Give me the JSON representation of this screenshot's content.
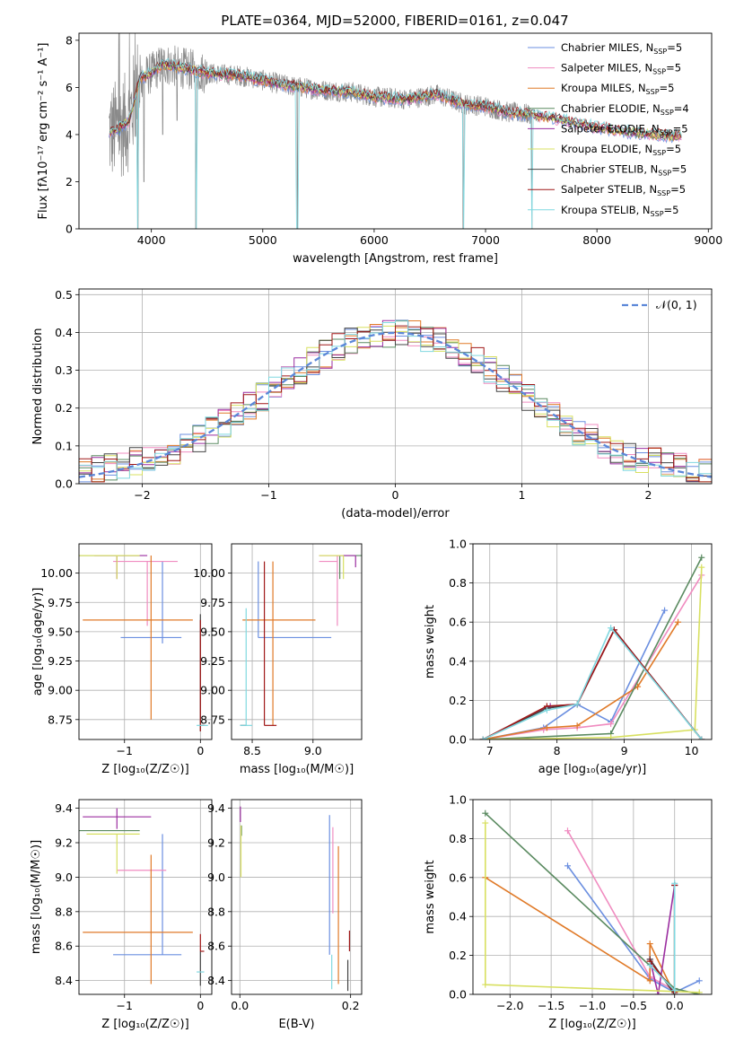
{
  "figure": {
    "title": "PLATE=0364, MJD=52000, FIBERID=0161, z=0.047"
  },
  "series_colors": [
    "#6b8fe0",
    "#f08cc0",
    "#e07a28",
    "#5a8a60",
    "#9b2ea0",
    "#d8e060",
    "#444444",
    "#a01818",
    "#80d8e0"
  ],
  "chart_data": [
    {
      "id": "spectrum",
      "type": "line",
      "xlabel": "wavelength [Angstrom, rest frame]",
      "ylabel": "Flux [$f_\\lambda 10^{-17}$ erg cm$^{-2}$ s$^{-1}$ A$^{-1}$]",
      "ylabel_display": "Flux [fλ10⁻¹⁷ erg cm⁻² s⁻¹ A⁻¹]",
      "xlim": [
        3350,
        9030
      ],
      "ylim": [
        0,
        8.3
      ],
      "xticks": [
        4000,
        5000,
        6000,
        7000,
        8000,
        9000
      ],
      "yticks": [
        0,
        2,
        4,
        6,
        8
      ],
      "grid": false,
      "legend_position": "top-right",
      "legend": [
        {
          "label": "Chabrier MILES, N",
          "sub": "SSP",
          "suffix": "=5"
        },
        {
          "label": "Salpeter MILES, N",
          "sub": "SSP",
          "suffix": "=5"
        },
        {
          "label": "Kroupa MILES, N",
          "sub": "SSP",
          "suffix": "=5"
        },
        {
          "label": "Chabrier ELODIE, N",
          "sub": "SSP",
          "suffix": "=4"
        },
        {
          "label": "Salpeter ELODIE, N",
          "sub": "SSP",
          "suffix": "=5"
        },
        {
          "label": "Kroupa ELODIE, N",
          "sub": "SSP",
          "suffix": "=5"
        },
        {
          "label": "Chabrier STELIB, N",
          "sub": "SSP",
          "suffix": "=5"
        },
        {
          "label": "Salpeter STELIB, N",
          "sub": "SSP",
          "suffix": "=5"
        },
        {
          "label": "Kroupa STELIB, N",
          "sub": "SSP",
          "suffix": "=5"
        }
      ],
      "continuum": [
        [
          3620,
          4.1
        ],
        [
          3700,
          4.2
        ],
        [
          3800,
          4.6
        ],
        [
          3900,
          6.4
        ],
        [
          4000,
          6.6
        ],
        [
          4100,
          7.0
        ],
        [
          4300,
          6.8
        ],
        [
          4500,
          6.6
        ],
        [
          4800,
          6.5
        ],
        [
          5000,
          6.3
        ],
        [
          5200,
          6.1
        ],
        [
          5500,
          5.9
        ],
        [
          5800,
          5.8
        ],
        [
          6000,
          5.6
        ],
        [
          6300,
          5.5
        ],
        [
          6563,
          5.7
        ],
        [
          6800,
          5.3
        ],
        [
          7000,
          5.2
        ],
        [
          7200,
          4.95
        ],
        [
          7400,
          4.85
        ]
      ],
      "model_end": [
        [
          7400,
          4.85
        ],
        [
          7600,
          4.7
        ],
        [
          7800,
          4.5
        ],
        [
          8000,
          4.3
        ],
        [
          8300,
          4.1
        ],
        [
          8500,
          4.0
        ],
        [
          8700,
          3.95
        ],
        [
          8760,
          3.95
        ]
      ],
      "dips": [
        [
          3933,
          2.0
        ],
        [
          4101,
          4.0
        ],
        [
          4230,
          4.6
        ],
        [
          4400,
          0.0
        ],
        [
          5310,
          0.0
        ],
        [
          6800,
          0.0
        ],
        [
          7420,
          0.0
        ],
        [
          3880,
          0.0
        ]
      ]
    },
    {
      "id": "residuals",
      "type": "histogram",
      "xlabel": "(data-model)/error",
      "ylabel": "Normed distribution",
      "xlim": [
        -2.5,
        2.5
      ],
      "ylim": [
        0,
        0.515
      ],
      "xticks": [
        -2,
        -1,
        0,
        1,
        2
      ],
      "yticks": [
        0.0,
        0.1,
        0.2,
        0.3,
        0.4,
        0.5
      ],
      "grid": true,
      "legend_position": "top-right",
      "legend": [
        {
          "label": "𝒩(0, 1)"
        }
      ],
      "bin_width": 0.1
    },
    {
      "id": "z_vs_age",
      "type": "errorbar",
      "xlabel": "Z [log₁₀(Z/Z☉)]",
      "ylabel": "age  [log₁₀(age/yr)]",
      "xlim": [
        -1.6,
        0.15
      ],
      "ylim": [
        8.58,
        10.25
      ],
      "xticks": [
        -1,
        0
      ],
      "yticks": [
        8.75,
        9.0,
        9.25,
        9.5,
        9.75,
        10.0
      ],
      "grid": true,
      "points": [
        {
          "x": -0.5,
          "xerr": [
            0.55,
            0.25
          ],
          "y": 9.45,
          "yerr": [
            0.05,
            0.65
          ]
        },
        {
          "x": -0.7,
          "xerr": [
            0.45,
            0.4
          ],
          "y": 10.1,
          "yerr": [
            0.55,
            0.0
          ]
        },
        {
          "x": -0.65,
          "xerr": [
            0.9,
            0.55
          ],
          "y": 9.6,
          "yerr": [
            0.85,
            0.55
          ]
        },
        {
          "x": -1.1,
          "xerr": [
            0.5,
            0.3
          ],
          "y": 10.15,
          "yerr": [
            0.0,
            0.0
          ]
        },
        {
          "x": -1.1,
          "xerr": [
            0.3,
            0.4
          ],
          "y": 10.15,
          "yerr": [
            0.2,
            0.0
          ]
        },
        {
          "x": -1.1,
          "xerr": [
            0.5,
            0.3
          ],
          "y": 10.15,
          "yerr": [
            0.2,
            0.0
          ]
        },
        {
          "x": 0.0,
          "xerr": [
            0.0,
            0.0
          ],
          "y": 8.7,
          "yerr": [
            0.05,
            0.95
          ]
        },
        {
          "x": 0.0,
          "xerr": [
            0.0,
            0.05
          ],
          "y": 8.7,
          "yerr": [
            0.05,
            0.9
          ]
        },
        {
          "x": 0.0,
          "xerr": [
            0.05,
            0.1
          ],
          "y": 8.7,
          "yerr": [
            0.0,
            0.0
          ]
        }
      ]
    },
    {
      "id": "mass_vs_age",
      "type": "errorbar",
      "xlabel": "mass [log₁₀(M/M☉)]",
      "ylabel": "",
      "xlim": [
        8.33,
        9.4
      ],
      "ylim": [
        8.58,
        10.25
      ],
      "xticks": [
        8.5,
        9.0
      ],
      "yticks": [
        8.75,
        9.0,
        9.25,
        9.5,
        9.75,
        10.0
      ],
      "grid": true,
      "points": [
        {
          "x": 8.55,
          "xerr": [
            0.0,
            0.6
          ],
          "y": 9.45,
          "yerr": [
            0.0,
            0.65
          ]
        },
        {
          "x": 9.2,
          "xerr": [
            0.15,
            0.0
          ],
          "y": 10.1,
          "yerr": [
            0.55,
            0.05
          ]
        },
        {
          "x": 8.67,
          "xerr": [
            0.25,
            0.35
          ],
          "y": 9.6,
          "yerr": [
            0.9,
            0.5
          ]
        },
        {
          "x": 9.22,
          "xerr": [
            0.0,
            0.2
          ],
          "y": 10.15,
          "yerr": [
            0.2,
            0.0
          ]
        },
        {
          "x": 9.35,
          "xerr": [
            0.3,
            0.0
          ],
          "y": 10.15,
          "yerr": [
            0.1,
            0.0
          ]
        },
        {
          "x": 9.25,
          "xerr": [
            0.2,
            0.0
          ],
          "y": 10.15,
          "yerr": [
            0.2,
            0.0
          ]
        },
        {
          "x": 8.45,
          "xerr": [
            0.05,
            0.0
          ],
          "y": 8.7,
          "yerr": [
            0.0,
            0.0
          ]
        },
        {
          "x": 8.6,
          "xerr": [
            0.0,
            0.1
          ],
          "y": 8.7,
          "yerr": [
            0.0,
            1.4
          ]
        },
        {
          "x": 8.45,
          "xerr": [
            0.05,
            0.05
          ],
          "y": 8.7,
          "yerr": [
            0.0,
            1.0
          ]
        }
      ]
    },
    {
      "id": "age_vs_weight",
      "type": "line",
      "xlabel": "age  [log₁₀(age/yr)]",
      "ylabel": "mass weight",
      "xlim": [
        6.75,
        10.3
      ],
      "ylim": [
        0,
        1.0
      ],
      "xticks": [
        7,
        8,
        9,
        10
      ],
      "yticks": [
        0.0,
        0.2,
        0.4,
        0.6,
        0.8,
        1.0
      ],
      "grid": true,
      "series": [
        {
          "x": [
            6.9,
            7.8,
            8.3,
            8.8,
            9.6
          ],
          "y": [
            0.0,
            0.06,
            0.18,
            0.09,
            0.66
          ]
        },
        {
          "x": [
            6.9,
            7.8,
            8.3,
            8.8,
            10.15
          ],
          "y": [
            0.0,
            0.05,
            0.06,
            0.08,
            0.84
          ]
        },
        {
          "x": [
            6.9,
            7.85,
            8.3,
            9.2,
            9.8
          ],
          "y": [
            0.0,
            0.06,
            0.07,
            0.27,
            0.6
          ]
        },
        {
          "x": [
            6.9,
            8.8,
            10.15
          ],
          "y": [
            0.0,
            0.03,
            0.93
          ]
        },
        {
          "x": [
            6.9,
            7.9,
            8.3,
            8.85,
            10.15
          ],
          "y": [
            0.0,
            0.17,
            0.18,
            0.56,
            0.0
          ]
        },
        {
          "x": [
            6.9,
            8.8,
            10.05,
            10.15
          ],
          "y": [
            0.0,
            0.01,
            0.05,
            0.88
          ]
        },
        {
          "x": [
            6.9,
            7.85,
            8.3,
            8.85,
            10.15
          ],
          "y": [
            0.0,
            0.16,
            0.18,
            0.56,
            0.0
          ]
        },
        {
          "x": [
            6.9,
            7.85,
            8.3,
            8.85,
            10.15
          ],
          "y": [
            0.0,
            0.17,
            0.18,
            0.56,
            0.0
          ]
        },
        {
          "x": [
            6.9,
            7.85,
            8.3,
            8.8,
            10.15
          ],
          "y": [
            0.0,
            0.15,
            0.18,
            0.57,
            0.0
          ]
        }
      ]
    },
    {
      "id": "z_vs_mass",
      "type": "errorbar",
      "xlabel": "Z [log₁₀(Z/Z☉)]",
      "ylabel": "mass [log₁₀(M/M☉)]",
      "xlim": [
        -1.6,
        0.15
      ],
      "ylim": [
        8.32,
        9.45
      ],
      "xticks": [
        -1,
        0
      ],
      "yticks": [
        8.4,
        8.6,
        8.8,
        9.0,
        9.2,
        9.4
      ],
      "grid": true,
      "points": [
        {
          "x": -0.5,
          "xerr": [
            0.65,
            0.25
          ],
          "y": 8.55,
          "yerr": [
            0.0,
            0.7
          ]
        },
        {
          "x": -0.65,
          "xerr": [
            0.45,
            0.2
          ],
          "y": 9.04,
          "yerr": [
            0.0,
            0.0
          ]
        },
        {
          "x": -0.65,
          "xerr": [
            0.9,
            0.55
          ],
          "y": 8.68,
          "yerr": [
            0.3,
            0.45
          ]
        },
        {
          "x": -1.1,
          "xerr": [
            0.5,
            0.3
          ],
          "y": 9.27,
          "yerr": [
            0.0,
            0.0
          ]
        },
        {
          "x": -1.1,
          "xerr": [
            0.45,
            0.45
          ],
          "y": 9.35,
          "yerr": [
            0.07,
            0.05
          ]
        },
        {
          "x": -1.1,
          "xerr": [
            0.4,
            0.3
          ],
          "y": 9.25,
          "yerr": [
            0.23,
            0.0
          ]
        },
        {
          "x": 0.0,
          "xerr": [
            0.0,
            0.0
          ],
          "y": 8.42,
          "yerr": [
            0.05,
            0.15
          ]
        },
        {
          "x": 0.0,
          "xerr": [
            0.0,
            0.05
          ],
          "y": 8.57,
          "yerr": [
            0.0,
            0.1
          ]
        },
        {
          "x": 0.0,
          "xerr": [
            0.05,
            0.05
          ],
          "y": 8.45,
          "yerr": [
            0.0,
            0.0
          ]
        }
      ]
    },
    {
      "id": "ebv_vs_mass",
      "type": "errorbar",
      "xlabel": "E(B-V)",
      "ylabel": "",
      "xlim": [
        -0.015,
        0.22
      ],
      "ylim": [
        8.32,
        9.45
      ],
      "xticks": [
        0.0,
        0.2
      ],
      "yticks": [
        8.4,
        8.6,
        8.8,
        9.0,
        9.2,
        9.4
      ],
      "grid": true,
      "points": [
        {
          "x": 0.162,
          "xerr": [
            0.0,
            0.0
          ],
          "y": 8.55,
          "yerr": [
            0.0,
            0.81
          ]
        },
        {
          "x": 0.168,
          "xerr": [
            0.0,
            0.0
          ],
          "y": 9.04,
          "yerr": [
            0.25,
            0.25
          ]
        },
        {
          "x": 0.178,
          "xerr": [
            0.0,
            0.0
          ],
          "y": 8.68,
          "yerr": [
            0.3,
            0.5
          ]
        },
        {
          "x": 0.003,
          "xerr": [
            0.0,
            0.0
          ],
          "y": 9.27,
          "yerr": [
            0.03,
            0.03
          ]
        },
        {
          "x": 0.001,
          "xerr": [
            0.0,
            0.0
          ],
          "y": 9.35,
          "yerr": [
            0.03,
            0.06
          ]
        },
        {
          "x": 0.002,
          "xerr": [
            0.0,
            0.0
          ],
          "y": 9.15,
          "yerr": [
            0.15,
            0.15
          ]
        },
        {
          "x": 0.195,
          "xerr": [
            0.0,
            0.0
          ],
          "y": 8.42,
          "yerr": [
            0.08,
            0.1
          ]
        },
        {
          "x": 0.198,
          "xerr": [
            0.0,
            0.0
          ],
          "y": 8.57,
          "yerr": [
            0.0,
            0.12
          ]
        },
        {
          "x": 0.166,
          "xerr": [
            0.0,
            0.0
          ],
          "y": 8.45,
          "yerr": [
            0.1,
            0.1
          ]
        }
      ]
    },
    {
      "id": "z_vs_weight",
      "type": "line",
      "xlabel": "Z [log₁₀(Z/Z☉)]",
      "ylabel": "mass weight",
      "xlim": [
        -2.45,
        0.45
      ],
      "ylim": [
        0,
        1.0
      ],
      "xticks": [
        -2.0,
        -1.5,
        -1.0,
        -0.5,
        0.0
      ],
      "yticks": [
        0.0,
        0.2,
        0.4,
        0.6,
        0.8,
        1.0
      ],
      "grid": true,
      "series": [
        {
          "x": [
            -1.3,
            -0.3,
            0.0,
            0.3
          ],
          "y": [
            0.66,
            0.08,
            0.01,
            0.07
          ]
        },
        {
          "x": [
            -1.3,
            -0.3,
            0.0
          ],
          "y": [
            0.84,
            0.09,
            0.02
          ]
        },
        {
          "x": [
            -2.3,
            -0.3,
            -0.3,
            0.0
          ],
          "y": [
            0.6,
            0.07,
            0.26,
            0.0
          ]
        },
        {
          "x": [
            -2.3,
            0.0,
            0.3
          ],
          "y": [
            0.93,
            0.03,
            0.0
          ]
        },
        {
          "x": [
            -0.3,
            -0.2,
            0.0
          ],
          "y": [
            0.18,
            0.0,
            0.56
          ]
        },
        {
          "x": [
            -2.3,
            -2.3,
            0.3
          ],
          "y": [
            0.88,
            0.05,
            0.01
          ]
        },
        {
          "x": [
            -0.3,
            0.0,
            0.0
          ],
          "y": [
            0.18,
            0.0,
            0.56
          ]
        },
        {
          "x": [
            -0.3,
            0.0,
            0.0
          ],
          "y": [
            0.17,
            0.01,
            0.56
          ]
        },
        {
          "x": [
            -0.3,
            0.0,
            0.0
          ],
          "y": [
            0.15,
            0.02,
            0.57
          ]
        }
      ]
    }
  ]
}
